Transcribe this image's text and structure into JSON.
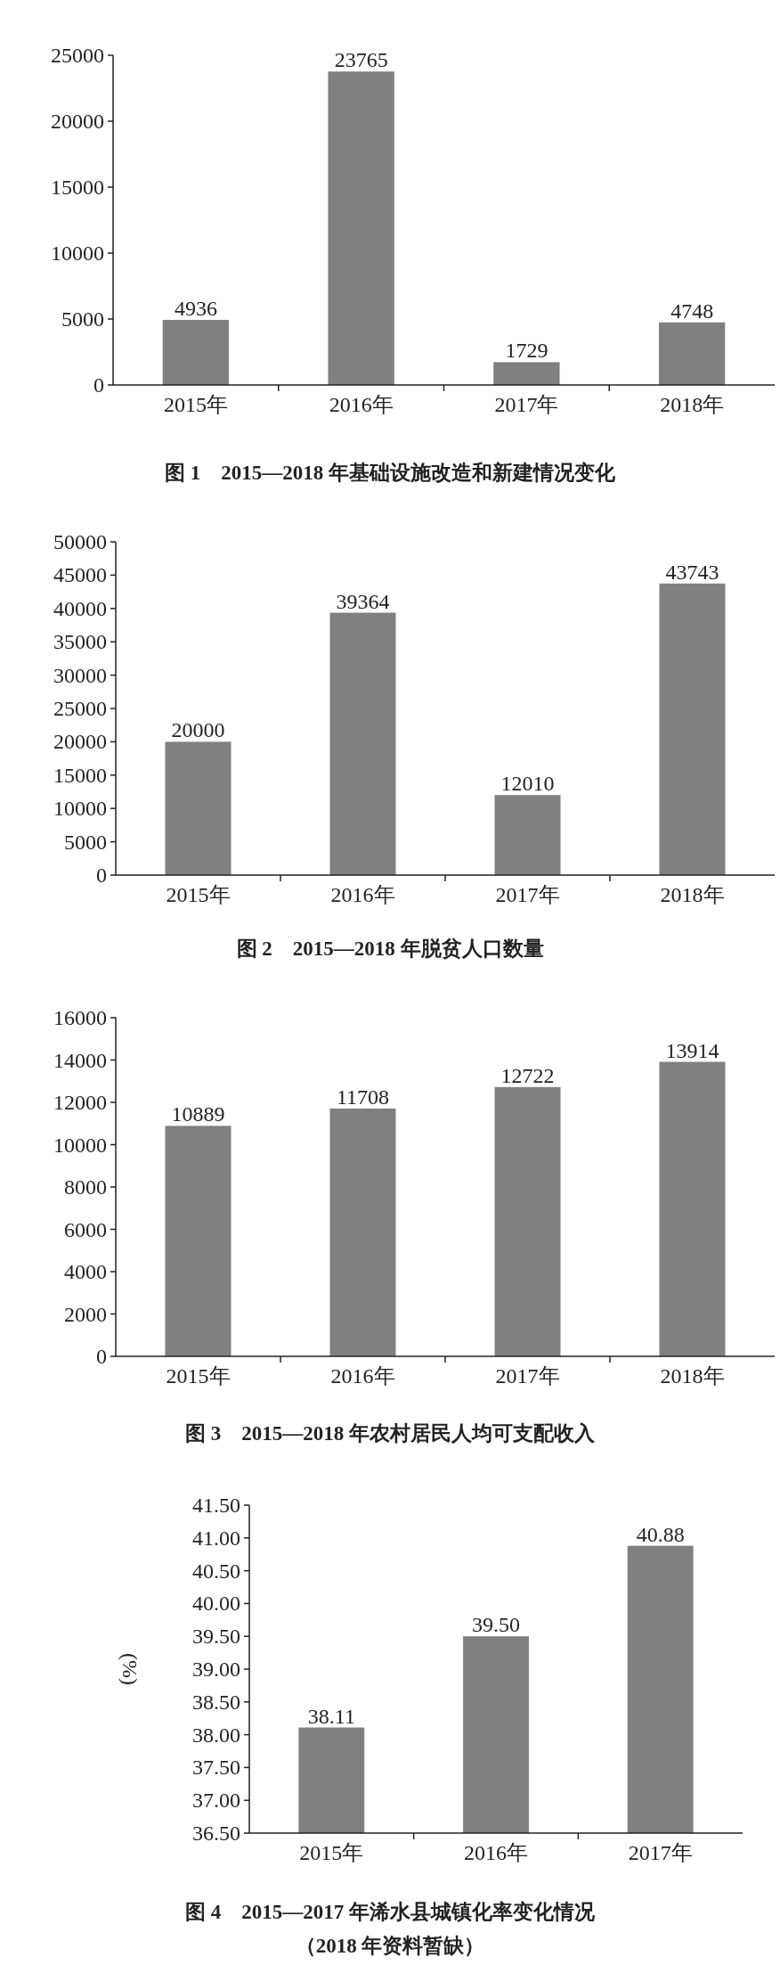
{
  "chart_data": [
    {
      "type": "bar",
      "title": "图 1　2015—2018 年基础设施改造和新建情况变化",
      "categories": [
        "2015年",
        "2016年",
        "2017年",
        "2018年"
      ],
      "values": [
        4936,
        23765,
        1729,
        4748
      ],
      "color": "#808080",
      "ylim": [
        0,
        25000
      ],
      "yticks": [
        0,
        5000,
        10000,
        15000,
        20000,
        25000
      ],
      "data_labels": true
    },
    {
      "type": "bar",
      "title": "图 2　2015—2018 年脱贫人口数量",
      "categories": [
        "2015年",
        "2016年",
        "2017年",
        "2018年"
      ],
      "values": [
        20000,
        39364,
        12010,
        43743
      ],
      "color": "#808080",
      "ylim": [
        0,
        50000
      ],
      "yticks": [
        0,
        5000,
        10000,
        15000,
        20000,
        25000,
        30000,
        35000,
        40000,
        45000,
        50000
      ],
      "data_labels": true
    },
    {
      "type": "bar",
      "title": "图 3　2015—2018 年农村居民人均可支配收入",
      "categories": [
        "2015年",
        "2016年",
        "2017年",
        "2018年"
      ],
      "values": [
        10889,
        11708,
        12722,
        13914
      ],
      "color": "#808080",
      "ylim": [
        0,
        16000
      ],
      "yticks": [
        0,
        2000,
        4000,
        6000,
        8000,
        10000,
        12000,
        14000,
        16000
      ],
      "data_labels": true
    },
    {
      "type": "bar",
      "title": "图 4　2015—2017 年浠水县城镇化率变化情况",
      "subtitle": "（2018 年资料暂缺）",
      "ylabel": "(%)",
      "categories": [
        "2015年",
        "2016年",
        "2017年"
      ],
      "values": [
        38.11,
        39.5,
        40.88
      ],
      "value_labels": [
        "38.11",
        "39.50",
        "40.88"
      ],
      "color": "#808080",
      "ylim": [
        36.5,
        41.5
      ],
      "yticks": [
        {
          "value": 36.5,
          "label": "36.50"
        },
        {
          "value": 37,
          "label": "37.00"
        },
        {
          "value": 37.5,
          "label": "37.50"
        },
        {
          "value": 38,
          "label": "38.00"
        },
        {
          "value": 38.5,
          "label": "38.50"
        },
        {
          "value": 39,
          "label": "39.00"
        },
        {
          "value": 39.5,
          "label": "39.50"
        },
        {
          "value": 40,
          "label": "40.00"
        },
        {
          "value": 40.5,
          "label": "40.50"
        },
        {
          "value": 41,
          "label": "41.00"
        },
        {
          "value": 41.5,
          "label": "41.50"
        }
      ]
    }
  ]
}
